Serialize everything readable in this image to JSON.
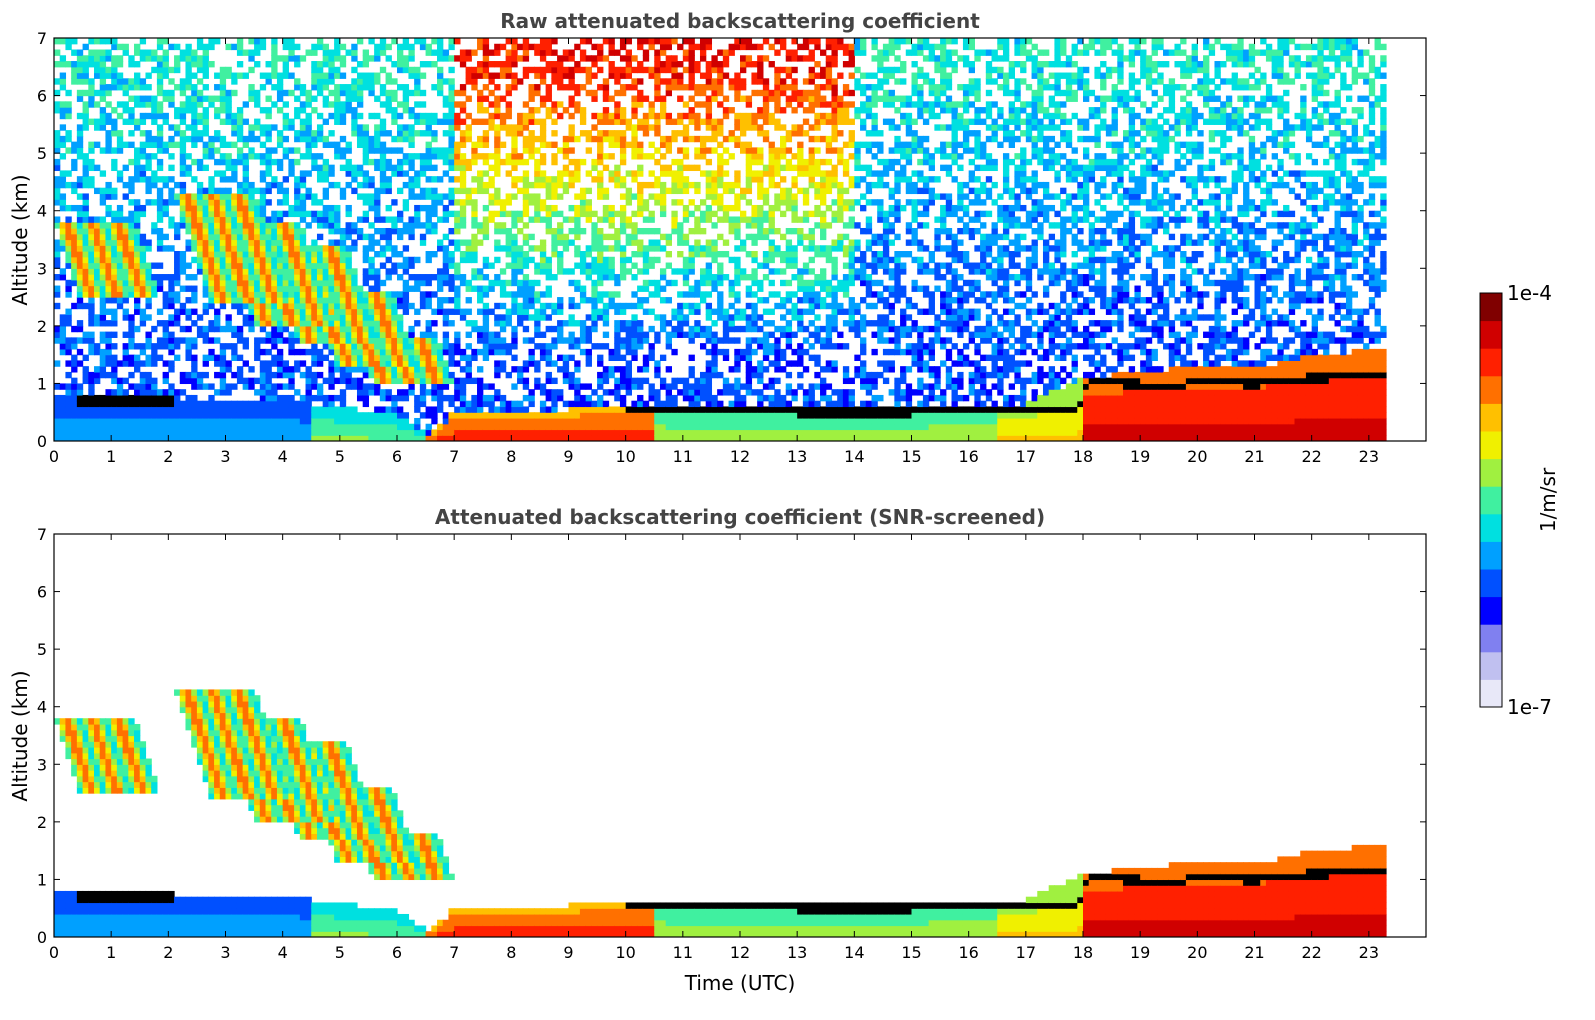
{
  "chart_data": [
    {
      "type": "heatmap",
      "title": "Raw attenuated backscattering coefficient",
      "xlabel": "",
      "ylabel": "Altitude (km)",
      "xlim": [
        0,
        24
      ],
      "ylim": [
        0,
        7
      ],
      "x_ticks": [
        "0",
        "1",
        "2",
        "3",
        "4",
        "5",
        "6",
        "7",
        "8",
        "9",
        "10",
        "11",
        "12",
        "13",
        "14",
        "15",
        "16",
        "17",
        "18",
        "19",
        "20",
        "21",
        "22",
        "23"
      ],
      "y_ticks": [
        "0",
        "1",
        "2",
        "3",
        "4",
        "5",
        "6",
        "7"
      ],
      "data_end_time": 23.3,
      "noise_level": 1.0,
      "features": {
        "boundary_layer_top": [
          [
            0,
            0.8
          ],
          [
            2,
            0.75
          ],
          [
            4,
            0.7
          ],
          [
            5,
            0.6
          ],
          [
            6,
            0.45
          ],
          [
            6.6,
            0.1
          ],
          [
            7,
            0.5
          ],
          [
            9,
            0.55
          ],
          [
            10,
            0.6
          ],
          [
            12,
            0.55
          ],
          [
            14,
            0.55
          ],
          [
            16,
            0.6
          ],
          [
            17,
            0.65
          ],
          [
            18,
            1.1
          ],
          [
            19,
            1.2
          ],
          [
            20,
            1.3
          ],
          [
            21,
            1.25
          ],
          [
            22,
            1.5
          ],
          [
            23.3,
            1.6
          ]
        ],
        "stratocumulus_layer": [
          [
            0.4,
            0.7
          ],
          [
            2.1,
            0.7
          ],
          [
            10,
            0.55
          ],
          [
            12,
            0.52
          ],
          [
            14,
            0.5
          ],
          [
            16,
            0.52
          ],
          [
            17.9,
            0.52
          ],
          [
            18.1,
            1.05
          ],
          [
            19.6,
            0.95
          ],
          [
            20,
            1.05
          ],
          [
            21,
            1.0
          ],
          [
            22,
            1.1
          ],
          [
            23.3,
            1.15
          ]
        ],
        "virga_streaks": [
          [
            0.1,
            2.5,
            3.8
          ],
          [
            2.2,
            2.4,
            4.3
          ],
          [
            3.0,
            2.0,
            3.8
          ],
          [
            3.8,
            1.7,
            3.4
          ],
          [
            4.6,
            1.3,
            2.6
          ],
          [
            5.4,
            1.0,
            1.8
          ]
        ]
      }
    },
    {
      "type": "heatmap",
      "title": "Attenuated backscattering coefficient (SNR-screened)",
      "xlabel": "Time (UTC)",
      "ylabel": "Altitude (km)",
      "xlim": [
        0,
        24
      ],
      "ylim": [
        0,
        7
      ],
      "x_ticks": [
        "0",
        "1",
        "2",
        "3",
        "4",
        "5",
        "6",
        "7",
        "8",
        "9",
        "10",
        "11",
        "12",
        "13",
        "14",
        "15",
        "16",
        "17",
        "18",
        "19",
        "20",
        "21",
        "22",
        "23"
      ],
      "y_ticks": [
        "0",
        "1",
        "2",
        "3",
        "4",
        "5",
        "6",
        "7"
      ],
      "data_end_time": 23.3,
      "noise_level": 0.0
    }
  ],
  "colorbar": {
    "label": "1/m/sr",
    "max_label": "1e-4",
    "min_label": "1e-7",
    "scale": "log",
    "range": [
      1e-07,
      0.0001
    ],
    "colors": [
      "#e8e8f8",
      "#c0c0f0",
      "#8080f0",
      "#0000ff",
      "#0050ff",
      "#00a0ff",
      "#00e0e0",
      "#40f0a0",
      "#a0f040",
      "#f0f000",
      "#ffc000",
      "#ff7000",
      "#ff2000",
      "#d00000",
      "#800000"
    ]
  }
}
